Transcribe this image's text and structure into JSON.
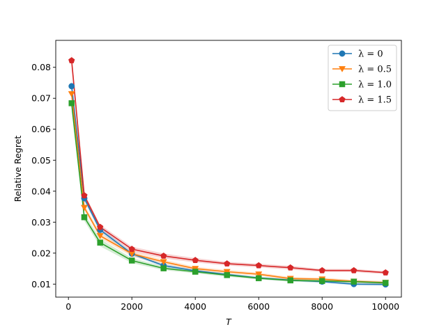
{
  "chart_data": {
    "type": "line",
    "title": "",
    "xlabel": "T",
    "ylabel": "Relative Regret",
    "xlim": [
      -400,
      10500
    ],
    "ylim": [
      0.0058,
      0.0887
    ],
    "xticks": [
      0,
      2000,
      4000,
      6000,
      8000,
      10000
    ],
    "yticks": [
      0.01,
      0.02,
      0.03,
      0.04,
      0.05,
      0.06,
      0.07,
      0.08
    ],
    "grid": false,
    "legend_position": "top-right",
    "x": [
      100,
      500,
      1000,
      2000,
      3000,
      4000,
      5000,
      6000,
      7000,
      8000,
      9000,
      10000
    ],
    "series": [
      {
        "name": "λ = 0",
        "color": "#1f77b4",
        "marker": "circle",
        "values": [
          0.0739,
          0.0377,
          0.0275,
          0.0198,
          0.016,
          0.0143,
          0.0131,
          0.012,
          0.0113,
          0.0108,
          0.01,
          0.0099
        ],
        "band": [
          0.0028,
          0.001,
          0.0008,
          0.0006,
          0.0005,
          0.0005,
          0.0004,
          0.0004,
          0.0004,
          0.0004,
          0.0004,
          0.0004
        ]
      },
      {
        "name": "λ = 0.5",
        "color": "#ff7f0e",
        "marker": "triangle-down",
        "values": [
          0.0714,
          0.0347,
          0.0256,
          0.0198,
          0.0172,
          0.015,
          0.014,
          0.0132,
          0.0118,
          0.0116,
          0.0109,
          0.0105
        ],
        "band": [
          0.0026,
          0.001,
          0.0009,
          0.0008,
          0.0007,
          0.0006,
          0.0006,
          0.0005,
          0.0005,
          0.0005,
          0.0005,
          0.0005
        ]
      },
      {
        "name": "λ = 1.0",
        "color": "#2ca02c",
        "marker": "square",
        "values": [
          0.0684,
          0.0316,
          0.0234,
          0.0176,
          0.0151,
          0.014,
          0.0129,
          0.0119,
          0.0112,
          0.011,
          0.0108,
          0.0104
        ],
        "band": [
          0.0026,
          0.0012,
          0.0012,
          0.0008,
          0.0006,
          0.0005,
          0.0005,
          0.0004,
          0.0004,
          0.0004,
          0.0004,
          0.0004
        ]
      },
      {
        "name": "λ = 1.5",
        "color": "#d62728",
        "marker": "pentagon",
        "values": [
          0.0822,
          0.0386,
          0.0284,
          0.0213,
          0.0191,
          0.0177,
          0.0166,
          0.016,
          0.0153,
          0.0144,
          0.0144,
          0.0137
        ],
        "band": [
          0.0026,
          0.0008,
          0.0008,
          0.0008,
          0.0008,
          0.0007,
          0.0006,
          0.0006,
          0.0006,
          0.0005,
          0.0005,
          0.0005
        ]
      }
    ]
  }
}
